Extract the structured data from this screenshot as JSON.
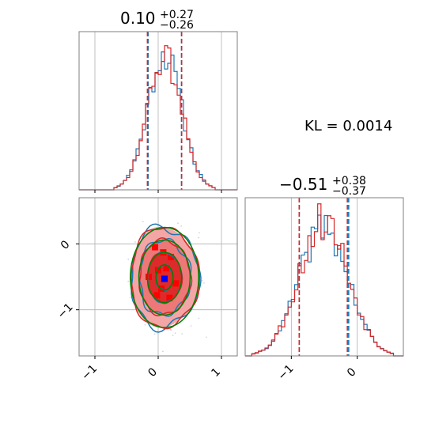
{
  "colors": {
    "blue": "#1f77b4",
    "red": "#d62728",
    "green": "#008000",
    "grid": "#b0b0b0",
    "fill_light": "#f4a6a6",
    "fill_mid": "#ee7777",
    "fill_dark": "#dd2a2a",
    "scatter": "#c8cbe0",
    "square_red": "#ff0000",
    "square_blue": "#0000ff"
  },
  "kl_text": "KL = 0.0014",
  "chart_data": [
    {
      "type": "histogram",
      "panel": "top-left marginal",
      "parameter_index": 0,
      "title": {
        "median": "0.10",
        "plus": "+0.27",
        "minus": "−0.26"
      },
      "xlim": [
        -1.25,
        1.25
      ],
      "x_ticks": [
        -1,
        0,
        1
      ],
      "y_ticks": [],
      "bin_width": 0.05,
      "quantile_lines": {
        "blue": [
          -0.16,
          0.1,
          0.37
        ],
        "red": [
          -0.17,
          0.1,
          0.37
        ]
      },
      "series": [
        {
          "name": "blue",
          "center": 0.1,
          "sigma": 0.27,
          "peak": 1.0,
          "noise_seed": 11,
          "noise": 0.12
        },
        {
          "name": "red",
          "center": 0.1,
          "sigma": 0.27,
          "peak": 0.98,
          "noise_seed": 29,
          "noise": 0.12
        }
      ]
    },
    {
      "type": "contour",
      "panel": "bottom-left 2D",
      "xlim": [
        -1.25,
        1.25
      ],
      "ylim": [
        -1.7,
        0.7
      ],
      "x_ticks": [
        -1,
        0,
        1
      ],
      "y_ticks": [
        0,
        -1
      ],
      "x_tick_labels": [
        "−1",
        "0",
        "1"
      ],
      "y_tick_labels": [
        "0",
        "−1"
      ],
      "center": [
        0.1,
        -0.51
      ],
      "sigma": [
        0.27,
        0.38
      ],
      "fill_levels": [
        {
          "level": 2.0,
          "color_key": "fill_light"
        },
        {
          "level": 1.5,
          "color_key": "fill_mid"
        },
        {
          "level": 1.0,
          "color_key": "fill_dark"
        }
      ],
      "contour_series": [
        {
          "name": "blue",
          "levels": [
            0.5,
            1.0,
            1.5,
            2.0
          ],
          "wiggle": 0.06,
          "seed": 3
        },
        {
          "name": "red",
          "levels": [
            0.5,
            1.0,
            1.5,
            2.0
          ],
          "wiggle": 0.05,
          "seed": 7
        },
        {
          "name": "green",
          "levels": [
            0.5,
            1.0,
            1.5,
            2.0
          ],
          "wiggle": 0.0,
          "seed": 0
        }
      ],
      "red_squares": [
        [
          -0.05,
          -0.05
        ],
        [
          0.08,
          -0.13
        ],
        [
          0.2,
          -0.2
        ],
        [
          -0.15,
          -0.5
        ],
        [
          0.0,
          -0.4
        ],
        [
          0.13,
          -0.37
        ],
        [
          0.28,
          -0.6
        ],
        [
          0.05,
          -0.68
        ],
        [
          -0.02,
          -0.78
        ],
        [
          0.18,
          -0.82
        ]
      ],
      "blue_square": [
        0.1,
        -0.53
      ]
    },
    {
      "type": "histogram",
      "panel": "bottom-right marginal",
      "parameter_index": 1,
      "title": {
        "median": "−0.51",
        "plus": "+0.38",
        "minus": "−0.37"
      },
      "xlim": [
        -1.7,
        0.7
      ],
      "x_ticks": [
        -1,
        0
      ],
      "x_tick_labels": [
        "−1",
        "0"
      ],
      "y_ticks": [],
      "bin_width": 0.05,
      "quantile_lines": {
        "blue": [
          -0.88,
          -0.51,
          -0.13
        ],
        "red": [
          -0.88,
          -0.51,
          -0.15
        ]
      },
      "series": [
        {
          "name": "blue",
          "center": -0.51,
          "sigma": 0.37,
          "peak": 0.95,
          "noise_seed": 41,
          "noise": 0.14
        },
        {
          "name": "red",
          "center": -0.51,
          "sigma": 0.37,
          "peak": 1.0,
          "noise_seed": 53,
          "noise": 0.16
        }
      ]
    }
  ]
}
